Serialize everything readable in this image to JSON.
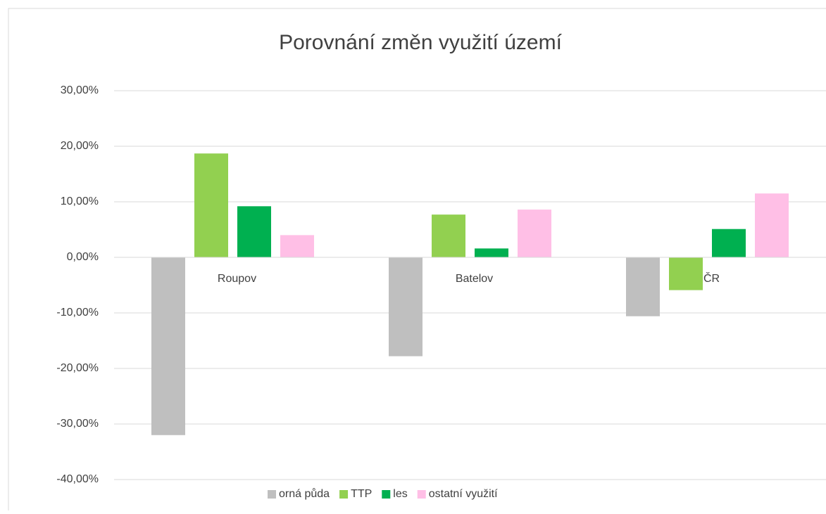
{
  "chart_data": {
    "type": "bar",
    "title": "Porovnání změn využití území",
    "categories": [
      "Roupov",
      "Batelov",
      "ČR"
    ],
    "series": [
      {
        "name": "orná půda",
        "color": "#bfbfbf",
        "values": [
          -32.0,
          -17.8,
          -10.6
        ]
      },
      {
        "name": "TTP",
        "color": "#92d050",
        "values": [
          18.7,
          7.7,
          -5.9
        ]
      },
      {
        "name": "les",
        "color": "#00b050",
        "values": [
          9.2,
          1.6,
          5.1
        ]
      },
      {
        "name": "ostatní využití",
        "color": "#ffbfe6",
        "values": [
          4.0,
          8.6,
          11.5
        ]
      }
    ],
    "ylim": [
      -40,
      30
    ],
    "yticks": [
      {
        "value": -40,
        "label": "-40,00%"
      },
      {
        "value": -30,
        "label": "-30,00%"
      },
      {
        "value": -20,
        "label": "-20,00%"
      },
      {
        "value": -10,
        "label": "-10,00%"
      },
      {
        "value": 0,
        "label": "0,00%"
      },
      {
        "value": 10,
        "label": "10,00%"
      },
      {
        "value": 20,
        "label": "20,00%"
      },
      {
        "value": 30,
        "label": "30,00%"
      }
    ],
    "grid": true,
    "legend": "bottom"
  }
}
